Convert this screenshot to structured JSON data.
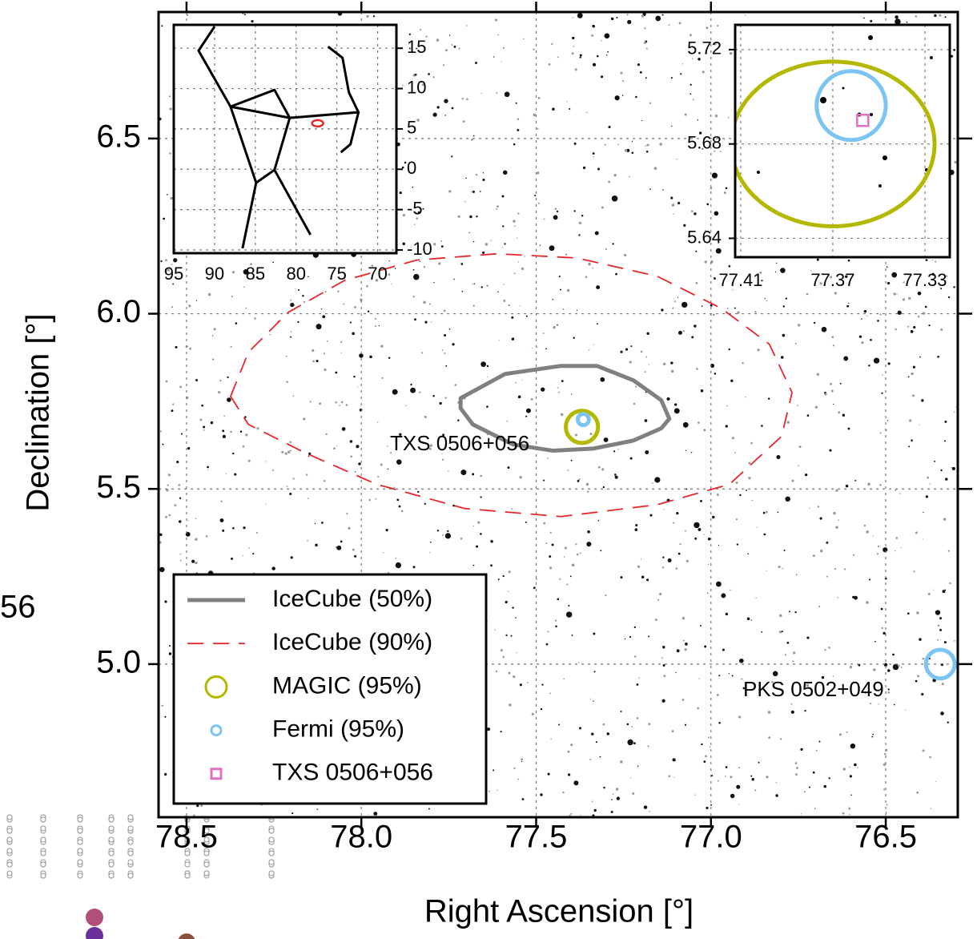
{
  "chart_data": [
    {
      "type": "skymap",
      "x_label": "Right Ascension [°]",
      "y_label": "Declination [°]",
      "xlim": [
        78.58,
        76.294
      ],
      "ylim": [
        4.563,
        6.861
      ],
      "xticks": [
        78.5,
        {
          "value": 78,
          "label": "78.0"
        },
        77.5,
        {
          "value": 77,
          "label": "77.0"
        },
        76.5
      ],
      "yticks": [
        {
          "value": 5,
          "label": "5.0"
        },
        5.5,
        {
          "value": 6,
          "label": "6.0"
        },
        6.5
      ],
      "grid": true,
      "legend": "lower left",
      "series": [
        {
          "name": "IceCube (50%)",
          "color": "#808080",
          "style": "solid",
          "x": [
            77.716,
            77.589,
            77.429,
            77.326,
            77.222,
            77.142,
            77.119,
            77.142,
            77.222,
            77.337,
            77.452,
            77.567,
            77.681,
            77.716
          ],
          "y": [
            5.759,
            5.828,
            5.851,
            5.851,
            5.81,
            5.753,
            5.7,
            5.673,
            5.638,
            5.615,
            5.609,
            5.627,
            5.684,
            5.73
          ]
        },
        {
          "name": "IceCube (90%)",
          "color": "#e8262a",
          "style": "dashed",
          "x": [
            78.374,
            78.323,
            78.209,
            78.048,
            77.842,
            77.612,
            77.383,
            77.154,
            76.97,
            76.833,
            76.768,
            76.798,
            76.947,
            77.154,
            77.429,
            77.704,
            77.956,
            78.163,
            78.323
          ],
          "y": [
            5.764,
            5.89,
            6.004,
            6.095,
            6.153,
            6.171,
            6.159,
            6.107,
            6.015,
            5.913,
            5.775,
            5.65,
            5.513,
            5.455,
            5.421,
            5.444,
            5.513,
            5.604,
            5.684
          ]
        },
        {
          "name": "MAGIC (95%)",
          "color": "#b5b800",
          "marker": "circle",
          "x": [
            77.369
          ],
          "y": [
            5.677
          ],
          "radius": [
            0.046
          ]
        },
        {
          "name": "Fermi (95%)",
          "color": "#7cc4f2",
          "marker": "circle",
          "x": [
            77.365,
            76.344
          ],
          "y": [
            5.698,
            5.0
          ],
          "radius": [
            0.016,
            0.041
          ]
        },
        {
          "name": "TXS 0506+056",
          "color": "#e070c0",
          "marker": "square",
          "x": [],
          "y": []
        }
      ],
      "annotations": [
        "TXS 0506+056",
        "PKS 0502+049"
      ]
    },
    {
      "type": "constellation",
      "xlim": [
        95,
        67.7
      ],
      "ylim": [
        -10.4,
        17.9
      ],
      "xticks": [
        95,
        90,
        85,
        80,
        75,
        70
      ],
      "yticks": [
        15,
        10,
        5,
        0,
        -5,
        -10
      ],
      "grid": true,
      "color": "#000000",
      "lines": [
        {
          "x": [
            90.0,
            91.96,
            88.04,
            84.9,
            86.57
          ],
          "y": [
            17.68,
            14.7,
            7.76,
            -1.67,
            -9.8
          ]
        },
        {
          "x": [
            88.04,
            82.65,
            80.78,
            88.04
          ],
          "y": [
            7.76,
            9.84,
            6.37,
            7.76
          ]
        },
        {
          "x": [
            80.78,
            72.35,
            73.53,
            74.31,
            76.08
          ],
          "y": [
            6.37,
            7.06,
            9.54,
            13.81,
            15.2
          ]
        },
        {
          "x": [
            72.35,
            73.33,
            74.51
          ],
          "y": [
            7.06,
            3.1,
            2.1
          ]
        },
        {
          "x": [
            80.78,
            82.65,
            78.24
          ],
          "y": [
            6.37,
            -0.08,
            -8.12
          ]
        },
        {
          "x": [
            84.9,
            82.65
          ],
          "y": [
            -1.67,
            -0.08
          ]
        }
      ],
      "marker": {
        "x": 77.36,
        "y": 5.7,
        "color": "#e8262a"
      }
    },
    {
      "type": "zoom",
      "xlim": [
        77.4124,
        77.3192
      ],
      "ylim": [
        5.632,
        5.7305
      ],
      "xticks": [
        77.41,
        77.37,
        77.33
      ],
      "yticks": [
        5.72,
        5.68,
        5.64
      ],
      "grid": true,
      "ellipses": [
        {
          "color": "#b5b800",
          "x": 77.37,
          "y": 5.68,
          "rx": 0.0442,
          "ry": 0.0349
        },
        {
          "color": "#7cc4f2",
          "x": 77.362,
          "y": 5.6963,
          "rx": 0.015,
          "ry": 0.0146
        }
      ],
      "squares": [
        {
          "color": "#e070c0",
          "x": 77.357,
          "y": 5.69
        }
      ]
    }
  ],
  "fragment_label": "56"
}
